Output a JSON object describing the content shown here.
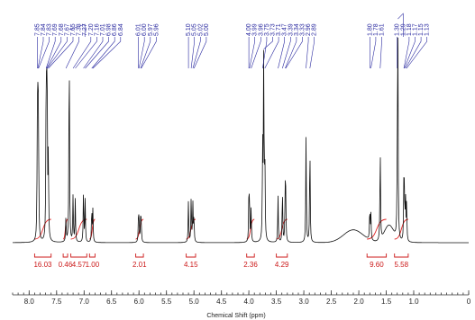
{
  "chart_data": {
    "type": "line",
    "xlabel": "Chemical Shift (ppm)",
    "xlim": [
      8.3,
      0.0
    ],
    "x_reversed": true,
    "x_ticks": [
      "8.0",
      "7.5",
      "7.0",
      "6.5",
      "6.0",
      "5.5",
      "5.0",
      "4.5",
      "4.0",
      "3.5",
      "3.0",
      "2.5",
      "2.0",
      "1.5",
      "1.0",
      "0"
    ],
    "x_tick_values": [
      8.0,
      7.5,
      7.0,
      6.5,
      6.0,
      5.5,
      5.0,
      4.5,
      4.0,
      3.5,
      3.0,
      2.5,
      2.0,
      1.5,
      1.0,
      0.0
    ],
    "peaks": [
      {
        "ppm": 7.85,
        "h": 0.5
      },
      {
        "ppm": 7.84,
        "h": 0.48
      },
      {
        "ppm": 7.83,
        "h": 0.55
      },
      {
        "ppm": 7.69,
        "h": 0.6
      },
      {
        "ppm": 7.68,
        "h": 0.62
      },
      {
        "ppm": 7.67,
        "h": 0.5
      },
      {
        "ppm": 7.65,
        "h": 0.4
      },
      {
        "ppm": 7.33,
        "h": 0.12
      },
      {
        "ppm": 7.27,
        "h": 1.0
      },
      {
        "ppm": 7.2,
        "h": 0.22
      },
      {
        "ppm": 7.16,
        "h": 0.2
      },
      {
        "ppm": 7.01,
        "h": 0.25
      },
      {
        "ppm": 6.98,
        "h": 0.2
      },
      {
        "ppm": 6.86,
        "h": 0.16
      },
      {
        "ppm": 6.84,
        "h": 0.15
      },
      {
        "ppm": 6.01,
        "h": 0.1
      },
      {
        "ppm": 6.0,
        "h": 0.11
      },
      {
        "ppm": 5.97,
        "h": 0.1
      },
      {
        "ppm": 5.96,
        "h": 0.09
      },
      {
        "ppm": 5.1,
        "h": 0.2
      },
      {
        "ppm": 5.05,
        "h": 0.22
      },
      {
        "ppm": 5.02,
        "h": 0.18
      },
      {
        "ppm": 5.0,
        "h": 0.12
      },
      {
        "ppm": 4.0,
        "h": 0.2
      },
      {
        "ppm": 3.99,
        "h": 0.18
      },
      {
        "ppm": 3.96,
        "h": 0.16
      },
      {
        "ppm": 3.75,
        "h": 0.45
      },
      {
        "ppm": 3.73,
        "h": 0.9
      },
      {
        "ppm": 3.71,
        "h": 0.4
      },
      {
        "ppm": 3.47,
        "h": 0.22
      },
      {
        "ppm": 3.39,
        "h": 0.25
      },
      {
        "ppm": 3.34,
        "h": 0.24
      },
      {
        "ppm": 3.33,
        "h": 0.2
      },
      {
        "ppm": 2.96,
        "h": 0.5
      },
      {
        "ppm": 2.89,
        "h": 0.48
      },
      {
        "ppm": 1.8,
        "h": 0.15
      },
      {
        "ppm": 1.78,
        "h": 0.12
      },
      {
        "ppm": 1.61,
        "h": 0.45
      },
      {
        "ppm": 1.3,
        "h": 0.2
      },
      {
        "ppm": 1.29,
        "h": 1.05
      },
      {
        "ppm": 1.18,
        "h": 0.25
      },
      {
        "ppm": 1.17,
        "h": 0.22
      },
      {
        "ppm": 1.15,
        "h": 0.2
      },
      {
        "ppm": 1.13,
        "h": 0.18
      }
    ],
    "peak_labels": [
      {
        "text": "7.85",
        "ppm": 7.85
      },
      {
        "text": "7.84",
        "ppm": 7.84
      },
      {
        "text": "7.83",
        "ppm": 7.83
      },
      {
        "text": "7.69",
        "ppm": 7.69
      },
      {
        "text": "7.68",
        "ppm": 7.68
      },
      {
        "text": "7.67",
        "ppm": 7.67
      },
      {
        "text": "7.65",
        "ppm": 7.65
      },
      {
        "text": "7.33",
        "ppm": 7.33
      },
      {
        "text": "7.27",
        "ppm": 7.27
      },
      {
        "text": "7.20",
        "ppm": 7.2
      },
      {
        "text": "7.16",
        "ppm": 7.16
      },
      {
        "text": "7.01",
        "ppm": 7.01
      },
      {
        "text": "6.98",
        "ppm": 6.98
      },
      {
        "text": "6.86",
        "ppm": 6.86
      },
      {
        "text": "6.84",
        "ppm": 6.84
      },
      {
        "text": "6.01",
        "ppm": 6.01
      },
      {
        "text": "6.00",
        "ppm": 6.0
      },
      {
        "text": "5.97",
        "ppm": 5.97
      },
      {
        "text": "5.96",
        "ppm": 5.96
      },
      {
        "text": "5.10",
        "ppm": 5.1
      },
      {
        "text": "5.05",
        "ppm": 5.05
      },
      {
        "text": "5.02",
        "ppm": 5.02
      },
      {
        "text": "5.00",
        "ppm": 5.0
      },
      {
        "text": "4.00",
        "ppm": 4.0
      },
      {
        "text": "3.99",
        "ppm": 3.99
      },
      {
        "text": "3.96",
        "ppm": 3.96
      },
      {
        "text": "3.75",
        "ppm": 3.75
      },
      {
        "text": "3.73",
        "ppm": 3.73
      },
      {
        "text": "3.71",
        "ppm": 3.71
      },
      {
        "text": "3.47",
        "ppm": 3.47
      },
      {
        "text": "3.39",
        "ppm": 3.39
      },
      {
        "text": "3.34",
        "ppm": 3.34
      },
      {
        "text": "3.33",
        "ppm": 3.33
      },
      {
        "text": "2.96",
        "ppm": 2.96
      },
      {
        "text": "2.89",
        "ppm": 2.89
      },
      {
        "text": "1.80",
        "ppm": 1.8
      },
      {
        "text": "1.78",
        "ppm": 1.78
      },
      {
        "text": "1.61",
        "ppm": 1.61
      },
      {
        "text": "1.30",
        "ppm": 1.3
      },
      {
        "text": "1.29",
        "ppm": 1.29
      },
      {
        "text": "1.18",
        "ppm": 1.18
      },
      {
        "text": "1.17",
        "ppm": 1.17
      },
      {
        "text": "1.15",
        "ppm": 1.15
      },
      {
        "text": "1.13",
        "ppm": 1.13
      }
    ],
    "integrations": [
      {
        "label": "16.03",
        "from": 7.9,
        "to": 7.6
      },
      {
        "label": "0.46",
        "from": 7.38,
        "to": 7.3
      },
      {
        "label": "4.57",
        "from": 7.24,
        "to": 6.95
      },
      {
        "label": "1.00",
        "from": 6.9,
        "to": 6.8
      },
      {
        "label": "2.01",
        "from": 6.06,
        "to": 5.92
      },
      {
        "label": "4.15",
        "from": 5.14,
        "to": 4.97
      },
      {
        "label": "2.36",
        "from": 4.04,
        "to": 3.9
      },
      {
        "label": "4.29",
        "from": 3.5,
        "to": 3.3
      },
      {
        "label": "9.60",
        "from": 1.85,
        "to": 1.5
      },
      {
        "label": "5.58",
        "from": 1.35,
        "to": 1.1
      }
    ],
    "colors": {
      "spectrum": "#111111",
      "peak_labels": "#2a2aa0",
      "integration": "#cc1a1a"
    }
  }
}
